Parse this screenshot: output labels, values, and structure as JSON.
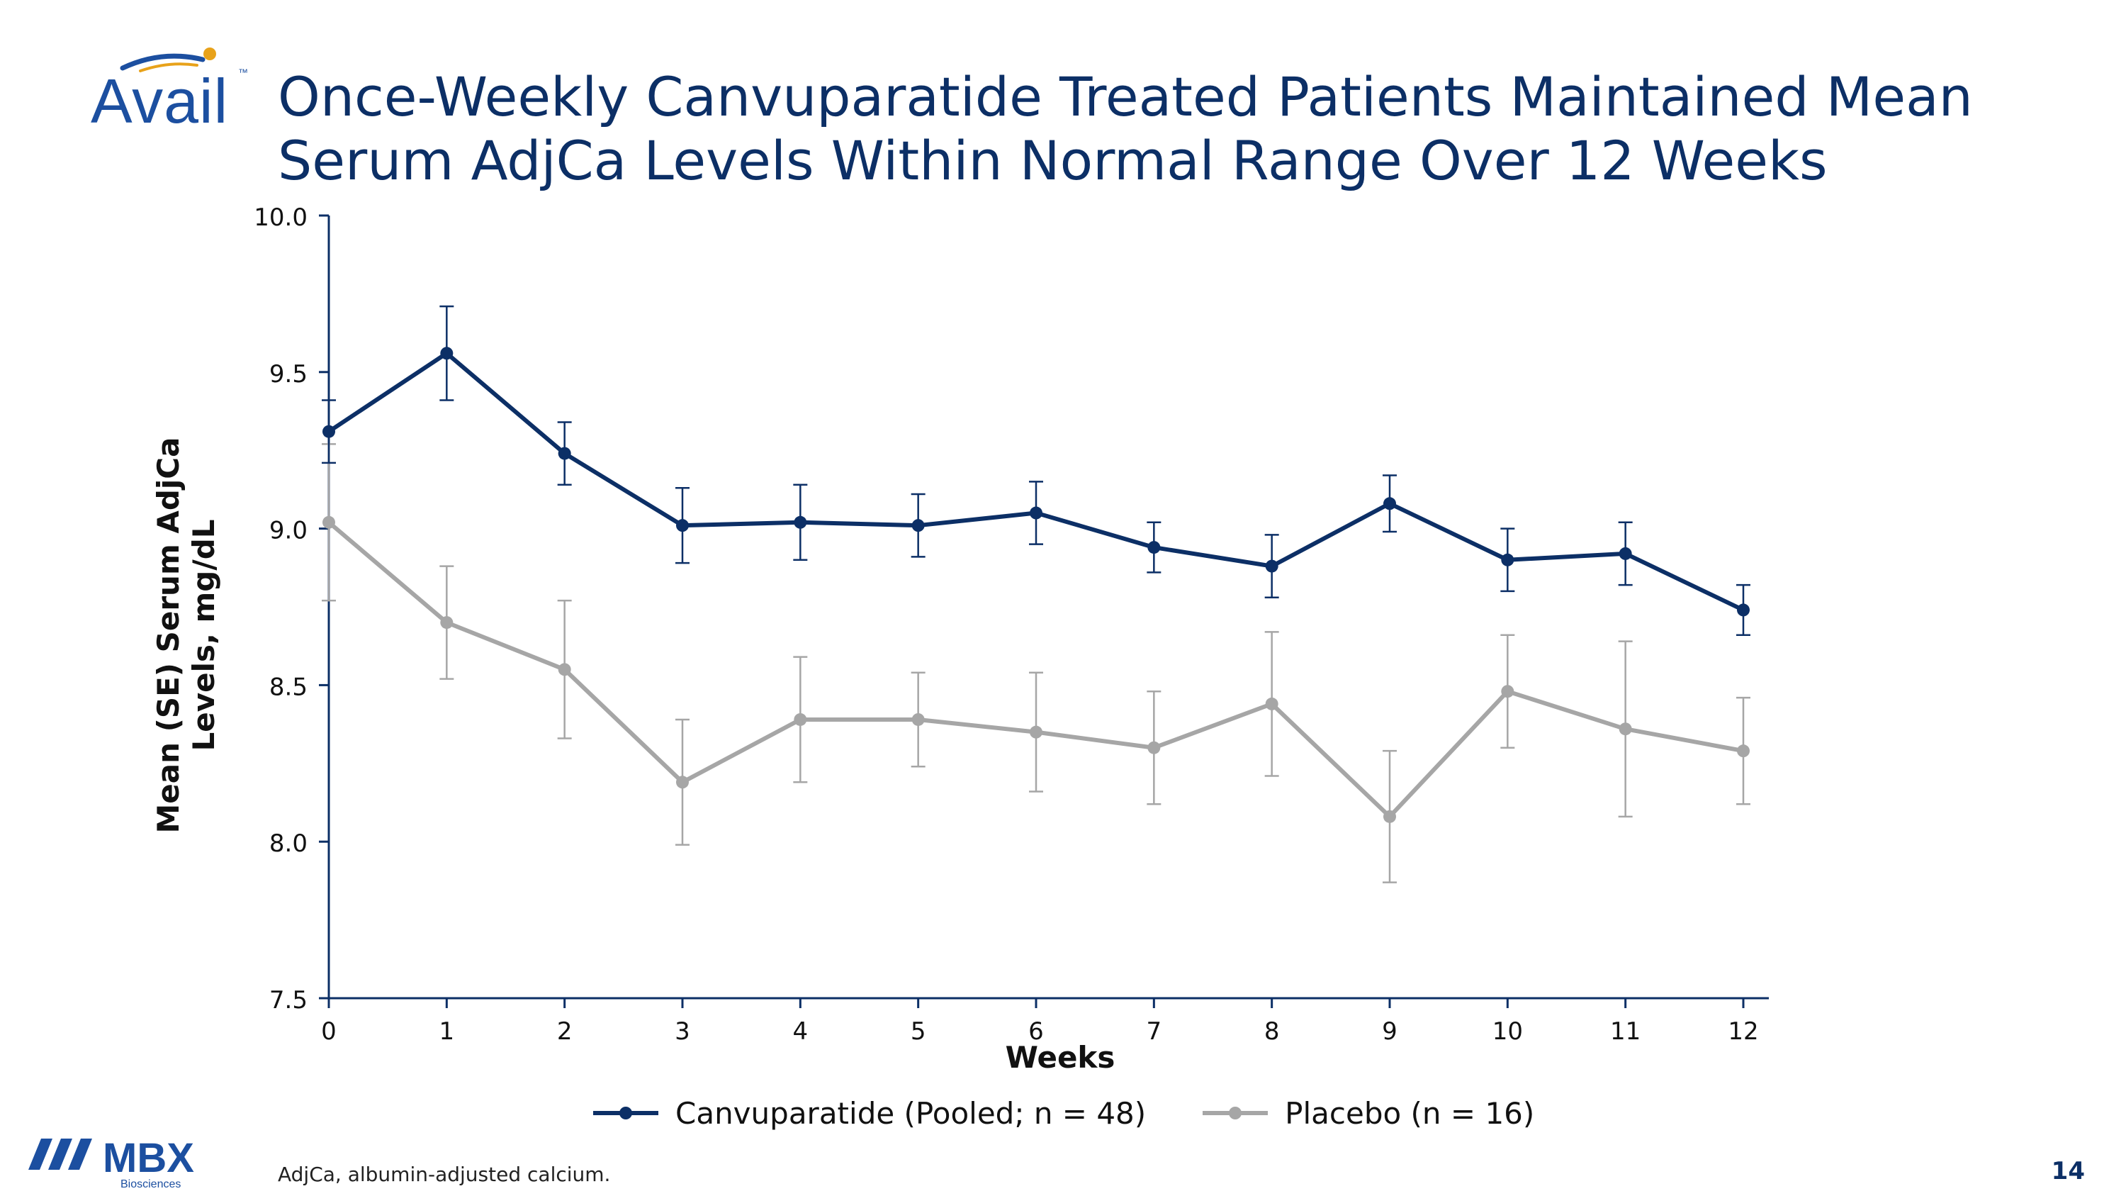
{
  "branding": {
    "avail_logo": "Avail",
    "avail_tm": "™",
    "mbx_logo": "MBX",
    "mbx_sub": "Biosciences"
  },
  "title": {
    "line1": "Once-Weekly Canvuparatide Treated Patients Maintained Mean",
    "line2": "Serum AdjCa Levels Within Normal Range Over 12 Weeks"
  },
  "footnote": "AdjCa, albumin-adjusted calcium.",
  "page_number": "14",
  "colors": {
    "title": "#0c2f66",
    "canvuparatide": "#0c2f66",
    "placebo": "#a6a6a6",
    "axis": "#0c2f66",
    "brand": "#1c4fa0"
  },
  "chart_data": {
    "type": "line",
    "title": "",
    "xlabel": "Weeks",
    "ylabel_lines": [
      "Mean (SE) Serum AdjCa",
      "Levels, mg/dL"
    ],
    "x": [
      0,
      1,
      2,
      3,
      4,
      5,
      6,
      7,
      8,
      9,
      10,
      11,
      12
    ],
    "x_tick_labels": [
      "0",
      "1",
      "2",
      "3",
      "4",
      "5",
      "6",
      "7",
      "8",
      "9",
      "10",
      "11",
      "12"
    ],
    "ylim": [
      7.5,
      10.0
    ],
    "y_ticks": [
      7.5,
      8.0,
      8.5,
      9.0,
      9.5,
      10.0
    ],
    "y_tick_labels": [
      "7.5",
      "8.0",
      "8.5",
      "9.0",
      "9.5",
      "10.0"
    ],
    "legend_position": "bottom",
    "series": [
      {
        "name": "Canvuparatide (Pooled; n = 48)",
        "values": [
          9.31,
          9.56,
          9.24,
          9.01,
          9.02,
          9.01,
          9.05,
          8.94,
          8.88,
          9.08,
          8.9,
          8.92,
          8.74
        ],
        "se": [
          0.1,
          0.15,
          0.1,
          0.12,
          0.12,
          0.1,
          0.1,
          0.08,
          0.1,
          0.09,
          0.1,
          0.1,
          0.08
        ]
      },
      {
        "name": "Placebo (n = 16)",
        "values": [
          9.02,
          8.7,
          8.55,
          8.19,
          8.39,
          8.39,
          8.35,
          8.3,
          8.44,
          8.08,
          8.48,
          8.36,
          8.29
        ],
        "se": [
          0.25,
          0.18,
          0.22,
          0.2,
          0.2,
          0.15,
          0.19,
          0.18,
          0.23,
          0.21,
          0.18,
          0.28,
          0.17
        ]
      }
    ]
  }
}
